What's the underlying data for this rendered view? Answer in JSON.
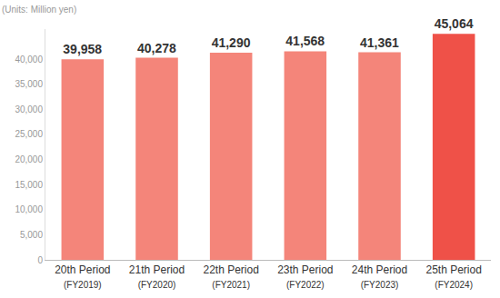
{
  "chart_data": {
    "type": "bar",
    "y_label": "(Units: Million yen)",
    "categories": [
      "20th Period\n(FY2019)",
      "21th Period\n(FY2020)",
      "22th Period\n(FY2021)",
      "23th Period\n(FY2022)",
      "24th Period\n(FY2023)",
      "25th Period\n(FY2024)"
    ],
    "values": [
      39958,
      40278,
      41290,
      41568,
      41361,
      45064
    ],
    "value_labels": [
      "39,958",
      "40,278",
      "41,290",
      "41,568",
      "41,361",
      "45,064"
    ],
    "colors": [
      "#f4857a",
      "#f4857a",
      "#f4857a",
      "#f4857a",
      "#f4857a",
      "#ef5148"
    ],
    "data_labels": true,
    "ylim": [
      0,
      46000
    ],
    "yticks": [
      0,
      {
        "value": 5000,
        "label": "5,000"
      },
      {
        "value": 10000,
        "label": "10,000"
      },
      {
        "value": 15000,
        "label": "15,000"
      },
      {
        "value": 20000,
        "label": "20,000"
      },
      {
        "value": 25000,
        "label": "25,000"
      },
      {
        "value": 30000,
        "label": "30,000"
      },
      {
        "value": 35000,
        "label": "35,000"
      },
      {
        "value": 40000,
        "label": "40,000"
      }
    ],
    "grid": false
  }
}
